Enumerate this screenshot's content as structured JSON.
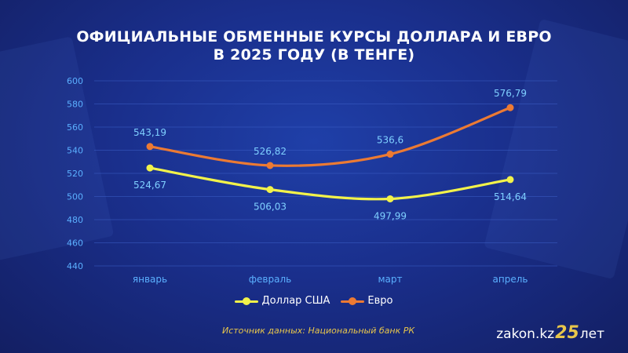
{
  "title": {
    "line1": "ОФИЦИАЛЬНЫЕ ОБМЕННЫЕ КУРСЫ ДОЛЛАРА И ЕВРО",
    "line2": "В 2025 ГОДУ (В ТЕНГЕ)"
  },
  "source": "Источник данных: Национальный банк РК",
  "brand": {
    "text": "zakon.kz",
    "number": "25",
    "suffix": "лет"
  },
  "colors": {
    "usd": "#f2f24a",
    "eur": "#ec7a33",
    "usd_label": "#7fd0ff",
    "eur_label": "#7fd0ff",
    "axis_text": "#5bb0ff",
    "grid": "#3a5cc4"
  },
  "chart_data": {
    "type": "line",
    "categories": [
      "январь",
      "февраль",
      "март",
      "апрель"
    ],
    "series": [
      {
        "name": "Доллар США",
        "values": [
          524.67,
          506.03,
          497.99,
          514.64
        ],
        "labels": [
          "524,67",
          "506,03",
          "497,99",
          "514,64"
        ],
        "label_position": "below"
      },
      {
        "name": "Евро",
        "values": [
          543.19,
          526.82,
          536.6,
          576.79
        ],
        "labels": [
          "543,19",
          "526,82",
          "536,6",
          "576,79"
        ],
        "label_position": "above"
      }
    ],
    "ylim": [
      440,
      600
    ],
    "yticks": [
      440,
      460,
      480,
      500,
      520,
      540,
      560,
      580,
      600
    ],
    "grid": true,
    "legend": "bottom"
  }
}
